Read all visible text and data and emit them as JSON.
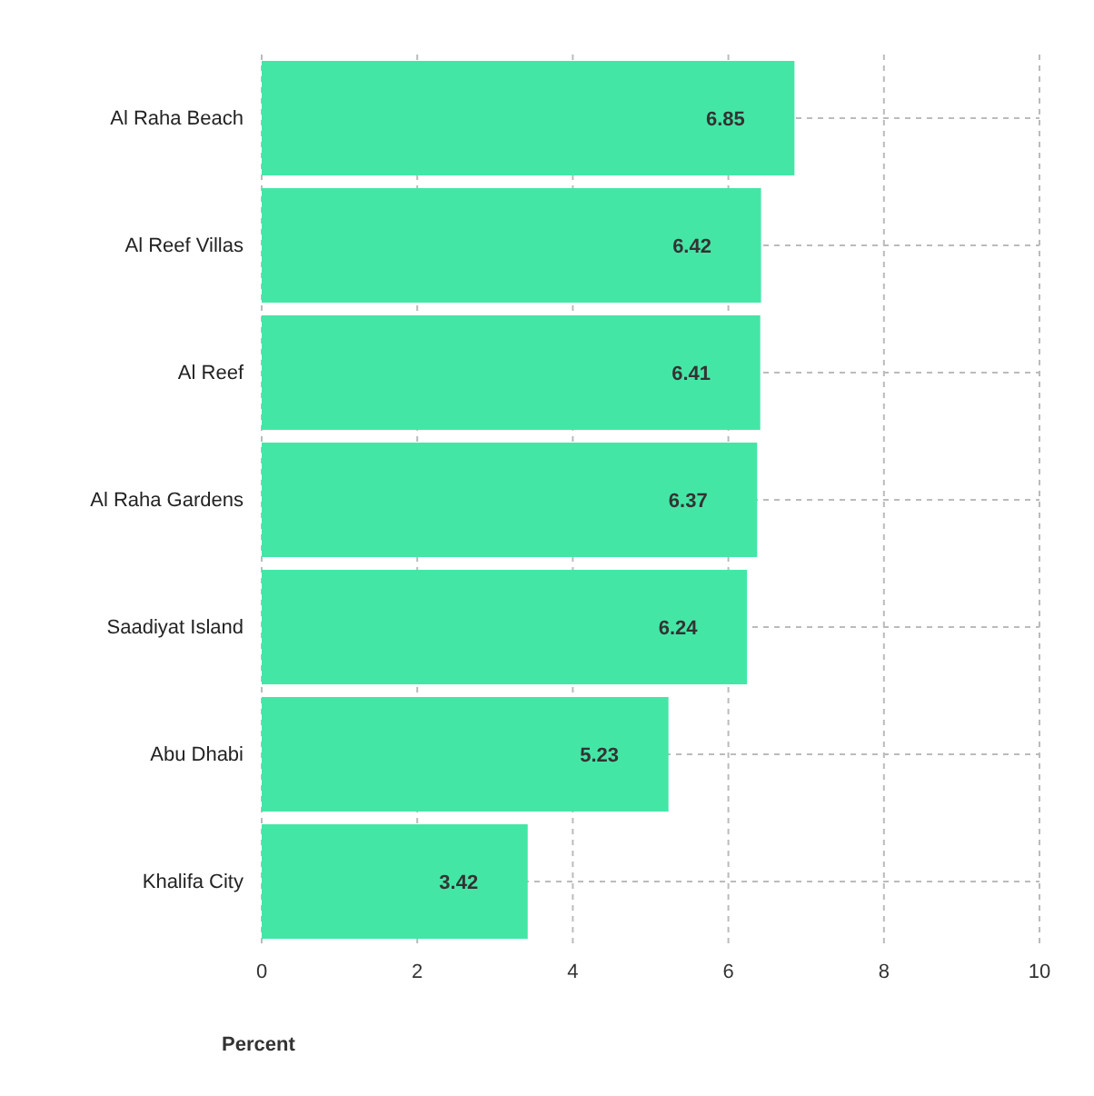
{
  "chart_data": {
    "type": "bar",
    "orientation": "horizontal",
    "xlabel": "Percent",
    "categories": [
      "Al Raha Beach",
      "Al Reef Villas",
      "Al Reef",
      "Al Raha Gardens",
      "Saadiyat Island",
      "Abu Dhabi",
      "Khalifa City"
    ],
    "values": [
      6.85,
      6.42,
      6.41,
      6.37,
      6.24,
      5.23,
      3.42
    ],
    "color": "#44e6a6",
    "xlim": [
      0,
      10
    ],
    "xticks": [
      0,
      2,
      4,
      6,
      8,
      10
    ],
    "grid": true,
    "data_labels": true
  }
}
